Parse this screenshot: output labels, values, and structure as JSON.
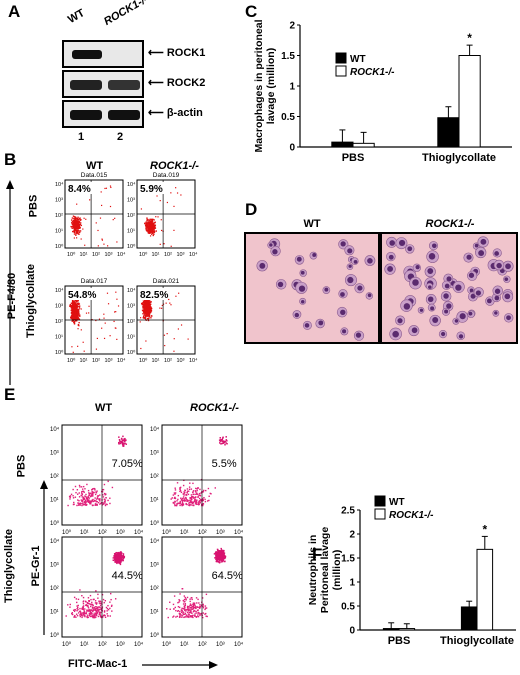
{
  "panelA": {
    "letter": "A",
    "col_wt": "WT",
    "col_ko": "ROCK1-/-",
    "rows": [
      "ROCK1",
      "ROCK2",
      "β-actin"
    ],
    "lanes": [
      "1",
      "2"
    ]
  },
  "panelB": {
    "letter": "B",
    "col_wt": "WT",
    "col_ko": "ROCK1-/-",
    "row_pbs": "PBS",
    "row_thio": "Thioglycollate",
    "y_axis": "PE-F4/80",
    "plots": [
      {
        "file": "Data.015",
        "pct": "8.4%"
      },
      {
        "file": "Data.019",
        "pct": "5.9%"
      },
      {
        "file": "Data.017",
        "pct": "54.8%"
      },
      {
        "file": "Data.021",
        "pct": "82.5%"
      }
    ],
    "ticks": [
      "10⁰",
      "10¹",
      "10²",
      "10³",
      "10⁴"
    ]
  },
  "panelC": {
    "letter": "C",
    "legend_wt": "WT",
    "legend_ko": "ROCK1-/-",
    "ylabel_line1": "Macrophages in peritoneal",
    "ylabel_line2": "lavage (million)",
    "yticks": [
      "0",
      "0.5",
      "1",
      "1.5",
      "2"
    ],
    "star": "*"
  },
  "panelD": {
    "letter": "D",
    "col_wt": "WT",
    "col_ko": "ROCK1-/-"
  },
  "panelE": {
    "letter": "E",
    "col_wt": "WT",
    "col_ko": "ROCK1-/-",
    "row_pbs": "PBS",
    "row_thio": "Thioglycollate",
    "y_axis": "PE-Gr-1",
    "x_axis": "FITC-Mac-1",
    "pcts": [
      "7.05%",
      "5.5%",
      "44.5%",
      "64.5%"
    ],
    "ticks": [
      "10⁰",
      "10¹",
      "10²",
      "10³",
      "10⁴"
    ]
  },
  "panelF": {
    "letter": "F",
    "legend_wt": "WT",
    "legend_ko": "ROCK1-/-",
    "ylabel_line1": "Neutrophils in",
    "ylabel_line2": "Peritoneal lavage",
    "ylabel_line3": "(million)",
    "yticks": [
      "0",
      "0.5",
      "1",
      "1.5",
      "2",
      "2.5"
    ],
    "star": "*"
  },
  "chart_data": [
    {
      "type": "bar",
      "categories": [
        "PBS",
        "Thioglycollate"
      ],
      "series": [
        {
          "name": "WT",
          "values": [
            0.08,
            0.48
          ],
          "errors": [
            0.2,
            0.18
          ],
          "color": "#000000"
        },
        {
          "name": "ROCK1-/-",
          "values": [
            0.06,
            1.5
          ],
          "errors": [
            0.18,
            0.17
          ],
          "color": "#ffffff"
        }
      ],
      "ylim": [
        0,
        2
      ],
      "ylabel": "Macrophages in peritoneal lavage (million)"
    },
    {
      "type": "bar",
      "categories": [
        "PBS",
        "Thioglycollate"
      ],
      "series": [
        {
          "name": "WT",
          "values": [
            0.03,
            0.48
          ],
          "errors": [
            0.12,
            0.12
          ],
          "color": "#000000"
        },
        {
          "name": "ROCK1-/-",
          "values": [
            0.03,
            1.68
          ],
          "errors": [
            0.1,
            0.27
          ],
          "color": "#ffffff"
        }
      ],
      "ylim": [
        0,
        2.5
      ],
      "ylabel": "Neutrophils in Peritoneal lavage (million)"
    }
  ]
}
